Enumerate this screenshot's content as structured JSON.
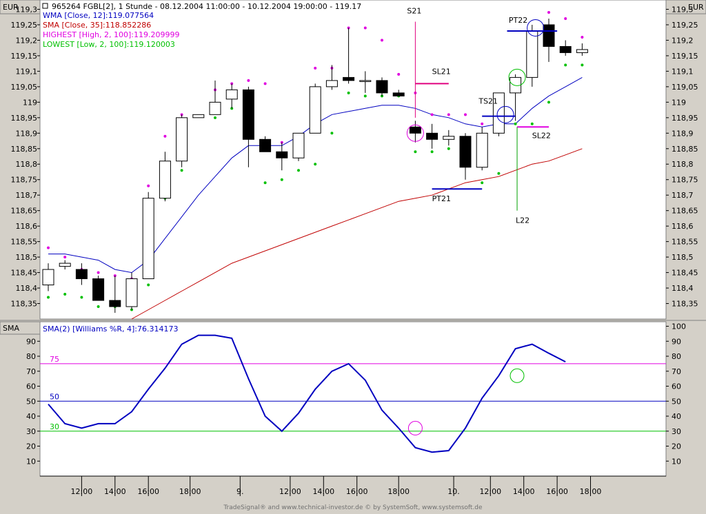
{
  "header": {
    "currency_left": "EUR",
    "currency_right": "EUR",
    "title": "965264  FGBL[2], 1 Stunde - 08.12.2004 11:00:00 - 10.12.2004 19:00:00 - 119.17",
    "legend": [
      {
        "text": "WMA [Close, 12]:119.077564",
        "color": "#0000c0"
      },
      {
        "text": "SMA [Close, 35]:118.852286",
        "color": "#c00000"
      },
      {
        "text": "HIGHEST [High, 2, 100]:119.209999",
        "color": "#e000e0"
      },
      {
        "text": "LOWEST [Low, 2, 100]:119.120003",
        "color": "#00c000"
      }
    ]
  },
  "lower_panel": {
    "label": "SMA",
    "legend": "SMA(2) [Williams %R, 4]:76.314173",
    "levels": [
      {
        "label": "75",
        "value": 75,
        "color": "#e000e0"
      },
      {
        "label": "50",
        "value": 50,
        "color": "#0000c0"
      },
      {
        "label": "30",
        "value": 30,
        "color": "#00c000"
      }
    ]
  },
  "x_axis": {
    "ticks": [
      {
        "i": 2,
        "label": "12:00"
      },
      {
        "i": 4,
        "label": "14:00"
      },
      {
        "i": 6,
        "label": "16:00"
      },
      {
        "i": 8.5,
        "label": "18:00"
      },
      {
        "i": 11.5,
        "label": "9."
      },
      {
        "i": 14.5,
        "label": "12:00"
      },
      {
        "i": 16.5,
        "label": "14:00"
      },
      {
        "i": 18.5,
        "label": "16:00"
      },
      {
        "i": 21,
        "label": "18:00"
      },
      {
        "i": 24.3,
        "label": "10."
      },
      {
        "i": 26.5,
        "label": "12:00"
      },
      {
        "i": 28.5,
        "label": "14:00"
      },
      {
        "i": 30.5,
        "label": "16:00"
      },
      {
        "i": 32.5,
        "label": "18:00"
      }
    ]
  },
  "footer": "TradeSignal® and www.technical-investor.de © by  SystemSoft, www.systemsoft.de",
  "chart_data": [
    {
      "type": "candlestick",
      "title": "965264  FGBL[2], 1 Stunde - 08.12.2004 11:00:00 - 10.12.2004 19:00:00 - 119.17",
      "y_ticks": [
        "118,35",
        "118,4",
        "118,45",
        "118,5",
        "118,55",
        "118,6",
        "118,65",
        "118,7",
        "118,75",
        "118,8",
        "118,85",
        "118,9",
        "118,95",
        "119",
        "119,05",
        "119,1",
        "119,15",
        "119,2",
        "119,25",
        "119,3"
      ],
      "y_tick_values": [
        118.35,
        118.4,
        118.45,
        118.5,
        118.55,
        118.6,
        118.65,
        118.7,
        118.75,
        118.8,
        118.85,
        118.9,
        118.95,
        119.0,
        119.05,
        119.1,
        119.15,
        119.2,
        119.25,
        119.3
      ],
      "ylim": [
        118.3,
        119.33
      ],
      "candles": [
        {
          "o": 118.41,
          "h": 118.48,
          "l": 118.39,
          "c": 118.46
        },
        {
          "o": 118.47,
          "h": 118.49,
          "l": 118.46,
          "c": 118.48
        },
        {
          "o": 118.46,
          "h": 118.48,
          "l": 118.41,
          "c": 118.43
        },
        {
          "o": 118.43,
          "h": 118.44,
          "l": 118.36,
          "c": 118.36
        },
        {
          "o": 118.36,
          "h": 118.44,
          "l": 118.32,
          "c": 118.34
        },
        {
          "o": 118.34,
          "h": 118.45,
          "l": 118.33,
          "c": 118.43
        },
        {
          "o": 118.43,
          "h": 118.71,
          "l": 118.43,
          "c": 118.69
        },
        {
          "o": 118.69,
          "h": 118.84,
          "l": 118.68,
          "c": 118.81
        },
        {
          "o": 118.81,
          "h": 118.96,
          "l": 118.79,
          "c": 118.95
        },
        {
          "o": 118.95,
          "h": 118.96,
          "l": 118.95,
          "c": 118.96
        },
        {
          "o": 118.96,
          "h": 119.07,
          "l": 118.96,
          "c": 119.0
        },
        {
          "o": 119.01,
          "h": 119.06,
          "l": 118.98,
          "c": 119.04
        },
        {
          "o": 119.04,
          "h": 119.05,
          "l": 118.79,
          "c": 118.88
        },
        {
          "o": 118.88,
          "h": 118.89,
          "l": 118.84,
          "c": 118.84
        },
        {
          "o": 118.84,
          "h": 118.87,
          "l": 118.78,
          "c": 118.82
        },
        {
          "o": 118.82,
          "h": 118.9,
          "l": 118.81,
          "c": 118.9
        },
        {
          "o": 118.9,
          "h": 119.06,
          "l": 118.9,
          "c": 119.05
        },
        {
          "o": 119.05,
          "h": 119.12,
          "l": 119.04,
          "c": 119.07
        },
        {
          "o": 119.08,
          "h": 119.24,
          "l": 119.06,
          "c": 119.07
        },
        {
          "o": 119.07,
          "h": 119.1,
          "l": 119.03,
          "c": 119.07
        },
        {
          "o": 119.07,
          "h": 119.08,
          "l": 119.02,
          "c": 119.03
        },
        {
          "o": 119.03,
          "h": 119.04,
          "l": 119.02,
          "c": 119.02
        },
        {
          "o": 118.92,
          "h": 118.94,
          "l": 118.87,
          "c": 118.9
        },
        {
          "o": 118.9,
          "h": 118.93,
          "l": 118.85,
          "c": 118.88
        },
        {
          "o": 118.88,
          "h": 118.91,
          "l": 118.86,
          "c": 118.89
        },
        {
          "o": 118.89,
          "h": 118.9,
          "l": 118.75,
          "c": 118.79
        },
        {
          "o": 118.79,
          "h": 118.92,
          "l": 118.78,
          "c": 118.9
        },
        {
          "o": 118.9,
          "h": 119.03,
          "l": 118.89,
          "c": 119.03
        },
        {
          "o": 119.03,
          "h": 119.09,
          "l": 118.94,
          "c": 119.08
        },
        {
          "o": 119.08,
          "h": 119.25,
          "l": 119.05,
          "c": 119.23
        },
        {
          "o": 119.25,
          "h": 119.27,
          "l": 119.13,
          "c": 119.18
        },
        {
          "o": 119.18,
          "h": 119.2,
          "l": 119.15,
          "c": 119.16
        },
        {
          "o": 119.16,
          "h": 119.19,
          "l": 119.15,
          "c": 119.17
        }
      ],
      "series": [
        {
          "name": "WMA [Close, 12]",
          "color": "#0000c0",
          "style": "line",
          "values": [
            118.51,
            118.51,
            118.5,
            118.49,
            118.46,
            118.45,
            118.49,
            118.56,
            118.63,
            118.7,
            118.76,
            118.82,
            118.86,
            118.86,
            118.86,
            118.89,
            118.93,
            118.96,
            118.97,
            118.98,
            118.99,
            118.99,
            118.98,
            118.96,
            118.95,
            118.93,
            118.92,
            118.93,
            118.93,
            118.98,
            119.02,
            119.05,
            119.08
          ]
        },
        {
          "name": "SMA [Close, 35]",
          "color": "#c00000",
          "style": "line",
          "start": 5,
          "values": [
            118.3,
            118.33,
            118.36,
            118.39,
            118.42,
            118.45,
            118.48,
            118.5,
            118.52,
            118.54,
            118.56,
            118.58,
            118.6,
            118.62,
            118.64,
            118.66,
            118.68,
            118.69,
            118.7,
            118.72,
            118.74,
            118.75,
            118.76,
            118.78,
            118.8,
            118.81,
            118.83,
            118.85
          ]
        },
        {
          "name": "HIGHEST [High, 2, 100]",
          "color": "#e000e0",
          "style": "dots",
          "values": [
            118.53,
            118.5,
            118.46,
            118.45,
            118.44,
            118.43,
            118.73,
            118.89,
            118.96,
            null,
            119.04,
            119.06,
            119.07,
            119.06,
            118.87,
            118.87,
            119.11,
            119.11,
            119.24,
            119.24,
            119.2,
            119.09,
            119.03,
            118.96,
            118.96,
            118.96,
            118.93,
            118.93,
            119.05,
            119.16,
            119.29,
            119.27,
            119.21
          ]
        },
        {
          "name": "LOWEST [Low, 2, 100]",
          "color": "#00c000",
          "style": "dots",
          "values": [
            118.37,
            118.38,
            118.37,
            118.34,
            118.34,
            118.33,
            118.41,
            118.69,
            118.78,
            null,
            118.95,
            118.98,
            118.94,
            118.74,
            118.75,
            118.78,
            118.8,
            118.9,
            119.03,
            119.02,
            119.02,
            119.02,
            118.84,
            118.84,
            118.85,
            118.8,
            118.74,
            118.77,
            118.93,
            118.93,
            119.0,
            119.12,
            119.12
          ]
        }
      ],
      "annotations": [
        {
          "type": "vline",
          "label": "S21",
          "i": 22,
          "from": 118.95,
          "to": 119.26,
          "color": "#e0007f"
        },
        {
          "type": "hline",
          "label": "SL21",
          "i0": 22,
          "i1": 24,
          "value": 119.06,
          "color": "#e0007f"
        },
        {
          "type": "hline",
          "label": "PT21",
          "i0": 23,
          "i1": 26,
          "value": 118.72,
          "color": "#0000c0"
        },
        {
          "type": "hline",
          "label": "TS21",
          "i0": 26,
          "i1": 28,
          "value": 118.955,
          "color": "#0000c0"
        },
        {
          "type": "hline",
          "label": "PT22",
          "i0": 27.5,
          "i1": 30.5,
          "value": 119.23,
          "color": "#0000c0"
        },
        {
          "type": "hline",
          "label": "SL22",
          "i0": 28.1,
          "i1": 30,
          "value": 118.92,
          "color": "#e000e0"
        },
        {
          "type": "vline",
          "label": "L22",
          "i": 28.1,
          "from": 118.65,
          "to": 118.92,
          "color": "#00a000"
        },
        {
          "type": "circle",
          "i": 22,
          "value": 118.9,
          "color": "#e000e0"
        },
        {
          "type": "circle",
          "i": 27.4,
          "value": 118.96,
          "color": "#0000c0"
        },
        {
          "type": "circle",
          "i": 28.1,
          "value": 119.08,
          "color": "#00c000"
        },
        {
          "type": "circle",
          "i": 29.2,
          "value": 119.24,
          "color": "#0000c0"
        }
      ]
    },
    {
      "type": "line",
      "title": "SMA(2) [Williams %R, 4]:76.314173",
      "ylim": [
        0,
        103
      ],
      "left_ticks": [
        "10",
        "20",
        "30",
        "40",
        "50",
        "60",
        "70",
        "80",
        "90"
      ],
      "left_tick_values": [
        10,
        20,
        30,
        40,
        50,
        60,
        70,
        80,
        90
      ],
      "right_ticks": [
        "10",
        "20",
        "30",
        "40",
        "50",
        "60",
        "70",
        "80",
        "90",
        "100"
      ],
      "right_tick_values": [
        10,
        20,
        30,
        40,
        50,
        60,
        70,
        80,
        90,
        100
      ],
      "series": [
        {
          "name": "SMA(2) [Williams %R, 4]",
          "color": "#0000c0",
          "values": [
            48,
            35,
            32,
            35,
            35,
            43,
            58,
            72,
            88,
            94,
            94,
            92,
            65,
            40,
            30,
            42,
            58,
            70,
            75,
            64,
            44,
            32,
            19,
            16,
            17,
            32,
            52,
            67,
            85,
            88,
            82,
            76.3
          ]
        }
      ],
      "markers": [
        {
          "i": 22,
          "value": 32,
          "color": "#e000e0"
        },
        {
          "i": 28.1,
          "value": 67,
          "color": "#00c000"
        }
      ]
    }
  ]
}
